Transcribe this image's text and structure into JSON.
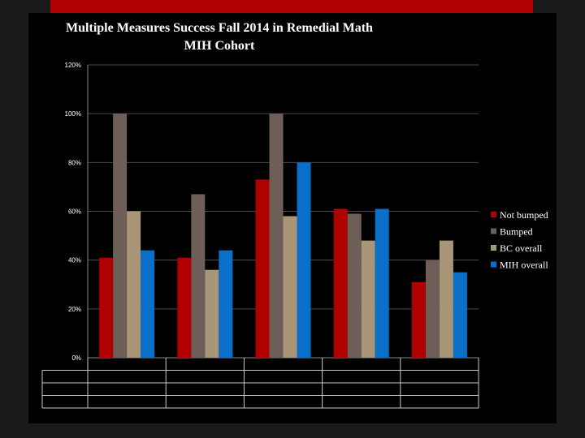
{
  "chart_data": {
    "type": "bar",
    "title": "Multiple Measures Success Fall 2014 in Remedial Math MIH Cohort",
    "categories": [
      "",
      "",
      "",
      "",
      ""
    ],
    "series": [
      {
        "name": "Not bumped",
        "values": [
          0.41,
          0.41,
          0.73,
          0.61,
          0.31
        ],
        "color": "#b00000"
      },
      {
        "name": "Bumped",
        "values": [
          1.0,
          0.67,
          1.0,
          0.59,
          0.4
        ],
        "color": "#6e5e58"
      },
      {
        "name": "BC overall",
        "values": [
          0.6,
          0.36,
          0.58,
          0.48,
          0.48
        ],
        "color": "#a89677"
      },
      {
        "name": "MIH overall",
        "values": [
          0.44,
          0.44,
          0.8,
          0.61,
          0.35
        ],
        "color": "#0a6fc8"
      }
    ],
    "y_ticks": [
      "0%",
      "20%",
      "40%",
      "60%",
      "80%",
      "100%",
      "120%"
    ],
    "ylim": [
      0,
      1.2
    ],
    "grid": true,
    "legend_position": "right"
  }
}
